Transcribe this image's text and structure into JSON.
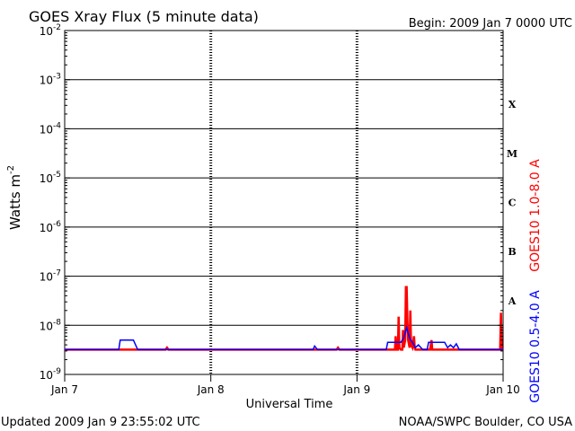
{
  "header": {
    "title": "GOES Xray Flux (5 minute data)",
    "begin": "Begin:  2009 Jan 7 0000 UTC"
  },
  "footer": {
    "updated": "Updated 2009 Jan  9 23:55:02 UTC",
    "credit": "NOAA/SWPC Boulder, CO USA"
  },
  "chart_data": {
    "type": "line",
    "title": "GOES Xray Flux (5 minute data)",
    "xlabel": "Universal Time",
    "ylabel": "Watts m",
    "ylabel_sup": "-2",
    "yscale": "log",
    "ylim": [
      1e-09,
      0.01
    ],
    "xlim": [
      0,
      3
    ],
    "x_ticks": [
      {
        "x": 0,
        "label": "Jan 7"
      },
      {
        "x": 1,
        "label": "Jan 8"
      },
      {
        "x": 2,
        "label": "Jan 9"
      },
      {
        "x": 3,
        "label": "Jan 10"
      }
    ],
    "y_ticks": [
      {
        "exp": -9,
        "base": "10",
        "sup": "-9"
      },
      {
        "exp": -8,
        "base": "10",
        "sup": "-8"
      },
      {
        "exp": -7,
        "base": "10",
        "sup": "-7"
      },
      {
        "exp": -6,
        "base": "10",
        "sup": "-6"
      },
      {
        "exp": -5,
        "base": "10",
        "sup": "-5"
      },
      {
        "exp": -4,
        "base": "10",
        "sup": "-4"
      },
      {
        "exp": -3,
        "base": "10",
        "sup": "-3"
      },
      {
        "exp": -2,
        "base": "10",
        "sup": "-2"
      }
    ],
    "flare_classes": [
      {
        "label": "A",
        "exp": -7.5
      },
      {
        "label": "B",
        "exp": -6.5
      },
      {
        "label": "C",
        "exp": -5.5
      },
      {
        "label": "M",
        "exp": -4.5
      },
      {
        "label": "X",
        "exp": -3.5
      }
    ],
    "grid_horizontal": [
      -8,
      -7,
      -6,
      -5,
      -4,
      -3
    ],
    "series": [
      {
        "name": "GOES10 1.0-8.0 A",
        "color": "#ff0000",
        "points": [
          [
            0,
            3.2e-09
          ],
          [
            0.69,
            3.2e-09
          ],
          [
            0.7,
            3.5e-09
          ],
          [
            0.71,
            3.2e-09
          ],
          [
            1.86,
            3.2e-09
          ],
          [
            1.87,
            3.5e-09
          ],
          [
            1.88,
            3.2e-09
          ],
          [
            2.22,
            3.2e-09
          ],
          [
            2.26,
            3.2e-09
          ],
          [
            2.265,
            6e-09
          ],
          [
            2.27,
            3.2e-09
          ],
          [
            2.28,
            3.2e-09
          ],
          [
            2.285,
            1.5e-08
          ],
          [
            2.29,
            3.5e-09
          ],
          [
            2.3,
            3.2e-09
          ],
          [
            2.31,
            3.2e-09
          ],
          [
            2.315,
            8e-09
          ],
          [
            2.32,
            3.5e-09
          ],
          [
            2.33,
            5e-09
          ],
          [
            2.335,
            6e-08
          ],
          [
            2.34,
            6e-08
          ],
          [
            2.345,
            1.2e-08
          ],
          [
            2.35,
            5e-09
          ],
          [
            2.36,
            3.5e-09
          ],
          [
            2.365,
            2e-08
          ],
          [
            2.37,
            4e-09
          ],
          [
            2.38,
            3.5e-09
          ],
          [
            2.39,
            6e-09
          ],
          [
            2.395,
            3.5e-09
          ],
          [
            2.4,
            3.2e-09
          ],
          [
            2.5,
            3.2e-09
          ],
          [
            2.51,
            5e-09
          ],
          [
            2.515,
            3.2e-09
          ],
          [
            2.98,
            3.2e-09
          ],
          [
            2.985,
            1.8e-08
          ],
          [
            2.99,
            3.2e-09
          ],
          [
            3,
            3.2e-09
          ]
        ]
      },
      {
        "name": "GOES10 0.5-4.0 A",
        "color": "#0000ff",
        "points": [
          [
            0,
            3.2e-09
          ],
          [
            0.37,
            3.2e-09
          ],
          [
            0.38,
            5e-09
          ],
          [
            0.47,
            5e-09
          ],
          [
            0.5,
            3.2e-09
          ],
          [
            1.7,
            3.2e-09
          ],
          [
            1.71,
            3.8e-09
          ],
          [
            1.73,
            3.2e-09
          ],
          [
            2.2,
            3.2e-09
          ],
          [
            2.21,
            4.5e-09
          ],
          [
            2.3,
            4.5e-09
          ],
          [
            2.32,
            5.5e-09
          ],
          [
            2.34,
            9e-09
          ],
          [
            2.36,
            5.5e-09
          ],
          [
            2.38,
            4.5e-09
          ],
          [
            2.4,
            3.5e-09
          ],
          [
            2.42,
            4e-09
          ],
          [
            2.45,
            3.2e-09
          ],
          [
            2.48,
            3.2e-09
          ],
          [
            2.49,
            4.5e-09
          ],
          [
            2.6,
            4.5e-09
          ],
          [
            2.62,
            3.5e-09
          ],
          [
            2.64,
            4e-09
          ],
          [
            2.66,
            3.5e-09
          ],
          [
            2.68,
            4.2e-09
          ],
          [
            2.7,
            3.2e-09
          ],
          [
            3,
            3.2e-09
          ]
        ]
      }
    ],
    "legend": "right-vertical",
    "grid": true
  }
}
